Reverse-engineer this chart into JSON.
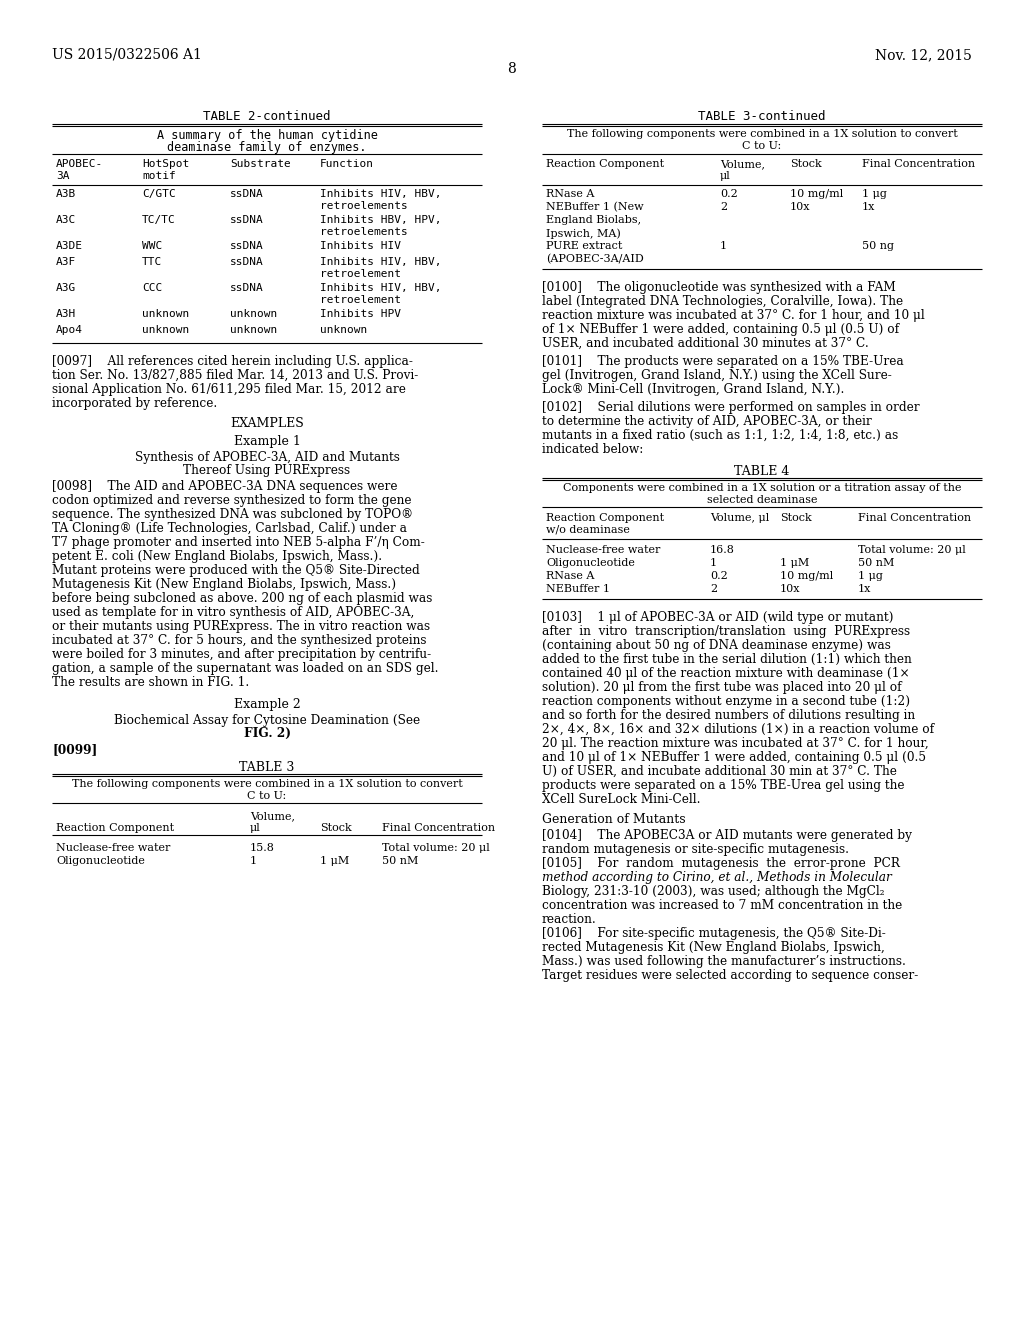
{
  "background_color": "#ffffff",
  "header_left": "US 2015/0322506 A1",
  "header_right": "Nov. 12, 2015",
  "page_number": "8"
}
